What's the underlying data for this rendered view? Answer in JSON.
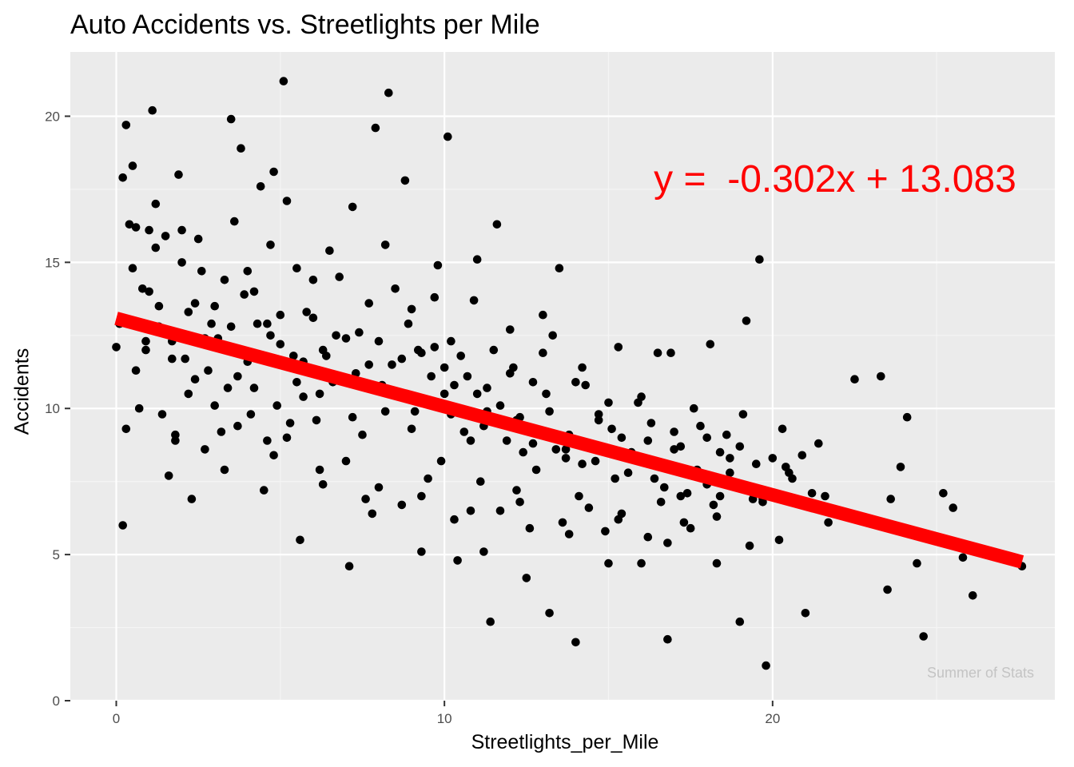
{
  "chart_data": {
    "type": "scatter",
    "title": "Auto Accidents vs. Streetlights per Mile",
    "xlabel": "Streetlights_per_Mile",
    "ylabel": "Accidents",
    "xlim": [
      -1.4,
      28.6
    ],
    "ylim": [
      0,
      22.2
    ],
    "x_ticks": [
      0,
      10,
      20
    ],
    "y_ticks": [
      0,
      5,
      10,
      15,
      20
    ],
    "grid": true,
    "annotation": "y =  -0.302x + 13.083",
    "watermark": "Summer of Stats",
    "regression": {
      "slope": -0.302,
      "intercept": 13.083,
      "x_range": [
        0,
        27.6
      ],
      "color": "#ff0000"
    },
    "point_color": "#000000",
    "series": [
      {
        "values": [
          [
            0.1,
            12.9
          ],
          [
            0.2,
            6.0
          ],
          [
            0.3,
            19.7
          ],
          [
            0.5,
            18.3
          ],
          [
            0.6,
            16.2
          ],
          [
            0.8,
            14.1
          ],
          [
            0.9,
            12.0
          ],
          [
            1.1,
            20.2
          ],
          [
            1.2,
            17.0
          ],
          [
            1.3,
            13.5
          ],
          [
            1.5,
            15.9
          ],
          [
            1.7,
            12.3
          ],
          [
            1.8,
            9.1
          ],
          [
            2.0,
            16.1
          ],
          [
            2.2,
            13.3
          ],
          [
            2.4,
            11.0
          ],
          [
            2.5,
            15.8
          ],
          [
            2.7,
            8.6
          ],
          [
            2.9,
            12.9
          ],
          [
            3.0,
            10.1
          ],
          [
            3.3,
            14.4
          ],
          [
            3.5,
            19.9
          ],
          [
            3.7,
            9.4
          ],
          [
            3.8,
            18.9
          ],
          [
            4.0,
            11.6
          ],
          [
            4.2,
            14.0
          ],
          [
            4.4,
            17.6
          ],
          [
            4.6,
            8.9
          ],
          [
            4.8,
            18.1
          ],
          [
            5.0,
            12.2
          ],
          [
            5.1,
            21.2
          ],
          [
            5.3,
            9.5
          ],
          [
            5.5,
            14.8
          ],
          [
            5.7,
            10.4
          ],
          [
            6.0,
            13.1
          ],
          [
            6.2,
            7.9
          ],
          [
            6.5,
            15.4
          ],
          [
            6.7,
            11.0
          ],
          [
            7.0,
            8.2
          ],
          [
            7.2,
            16.9
          ],
          [
            7.4,
            12.6
          ],
          [
            7.6,
            6.9
          ],
          [
            7.9,
            19.6
          ],
          [
            8.1,
            10.8
          ],
          [
            8.3,
            20.8
          ],
          [
            8.5,
            14.1
          ],
          [
            8.8,
            17.8
          ],
          [
            9.0,
            9.3
          ],
          [
            9.2,
            12.0
          ],
          [
            9.5,
            7.6
          ],
          [
            9.7,
            13.8
          ],
          [
            10.0,
            10.5
          ],
          [
            10.1,
            19.3
          ],
          [
            10.3,
            6.2
          ],
          [
            10.5,
            11.8
          ],
          [
            10.8,
            8.9
          ],
          [
            11.0,
            15.1
          ],
          [
            11.2,
            5.1
          ],
          [
            11.4,
            2.7
          ],
          [
            11.6,
            16.3
          ],
          [
            11.8,
            9.6
          ],
          [
            12.0,
            12.7
          ],
          [
            12.2,
            7.2
          ],
          [
            12.5,
            4.2
          ],
          [
            12.7,
            10.9
          ],
          [
            13.0,
            13.2
          ],
          [
            13.2,
            3.0
          ],
          [
            13.5,
            14.8
          ],
          [
            13.7,
            8.3
          ],
          [
            14.0,
            2.0
          ],
          [
            14.2,
            11.4
          ],
          [
            14.4,
            6.6
          ],
          [
            14.7,
            9.8
          ],
          [
            15.0,
            4.7
          ],
          [
            15.3,
            12.1
          ],
          [
            15.6,
            7.8
          ],
          [
            15.9,
            10.2
          ],
          [
            16.2,
            5.6
          ],
          [
            16.5,
            11.9
          ],
          [
            16.8,
            2.1
          ],
          [
            17.0,
            8.6
          ],
          [
            17.3,
            6.1
          ],
          [
            17.6,
            10.0
          ],
          [
            18.0,
            7.4
          ],
          [
            18.3,
            4.7
          ],
          [
            18.6,
            9.1
          ],
          [
            19.0,
            2.7
          ],
          [
            19.2,
            13.0
          ],
          [
            19.4,
            6.9
          ],
          [
            19.6,
            15.1
          ],
          [
            19.8,
            1.2
          ],
          [
            20.0,
            8.3
          ],
          [
            20.3,
            9.3
          ],
          [
            20.6,
            7.6
          ],
          [
            21.0,
            3.0
          ],
          [
            21.4,
            8.8
          ],
          [
            21.7,
            6.1
          ],
          [
            22.5,
            11.0
          ],
          [
            23.3,
            11.1
          ],
          [
            23.5,
            3.8
          ],
          [
            23.9,
            8.0
          ],
          [
            24.1,
            9.7
          ],
          [
            24.4,
            4.7
          ],
          [
            24.6,
            2.2
          ],
          [
            25.2,
            7.1
          ],
          [
            25.5,
            6.6
          ],
          [
            25.8,
            4.9
          ],
          [
            26.1,
            3.6
          ],
          [
            27.6,
            4.6
          ],
          [
            0.0,
            12.1
          ],
          [
            0.4,
            16.3
          ],
          [
            0.7,
            10.0
          ],
          [
            1.0,
            14.0
          ],
          [
            1.4,
            9.8
          ],
          [
            1.6,
            7.7
          ],
          [
            1.9,
            18.0
          ],
          [
            2.1,
            11.7
          ],
          [
            2.3,
            6.9
          ],
          [
            2.6,
            14.7
          ],
          [
            2.8,
            11.3
          ],
          [
            3.1,
            12.4
          ],
          [
            3.4,
            10.7
          ],
          [
            3.6,
            16.4
          ],
          [
            3.9,
            13.9
          ],
          [
            4.1,
            9.8
          ],
          [
            4.3,
            12.9
          ],
          [
            4.5,
            7.2
          ],
          [
            4.7,
            15.6
          ],
          [
            4.9,
            10.1
          ],
          [
            5.2,
            17.1
          ],
          [
            5.4,
            11.8
          ],
          [
            5.6,
            5.5
          ],
          [
            5.8,
            13.3
          ],
          [
            6.1,
            9.6
          ],
          [
            6.3,
            12.0
          ],
          [
            6.6,
            10.9
          ],
          [
            6.8,
            14.5
          ],
          [
            7.1,
            4.6
          ],
          [
            7.3,
            11.2
          ],
          [
            7.5,
            9.1
          ],
          [
            7.7,
            13.6
          ],
          [
            8.0,
            7.3
          ],
          [
            8.2,
            15.6
          ],
          [
            8.4,
            11.5
          ],
          [
            8.7,
            6.7
          ],
          [
            8.9,
            12.9
          ],
          [
            9.1,
            9.9
          ],
          [
            9.3,
            5.1
          ],
          [
            9.6,
            11.1
          ],
          [
            9.8,
            14.9
          ],
          [
            9.9,
            8.2
          ],
          [
            10.2,
            12.3
          ],
          [
            10.4,
            4.8
          ],
          [
            10.6,
            9.2
          ],
          [
            10.9,
            13.7
          ],
          [
            11.1,
            7.5
          ],
          [
            11.3,
            10.7
          ],
          [
            11.5,
            12.0
          ],
          [
            11.7,
            6.5
          ],
          [
            11.9,
            8.9
          ],
          [
            12.1,
            11.4
          ],
          [
            12.3,
            9.7
          ],
          [
            12.6,
            5.9
          ],
          [
            12.8,
            7.9
          ],
          [
            13.1,
            10.5
          ],
          [
            13.3,
            12.5
          ],
          [
            13.6,
            6.1
          ],
          [
            13.8,
            9.1
          ],
          [
            14.1,
            7.0
          ],
          [
            14.3,
            10.8
          ],
          [
            14.6,
            8.2
          ],
          [
            14.9,
            5.8
          ],
          [
            15.1,
            9.3
          ],
          [
            15.4,
            6.4
          ],
          [
            15.7,
            8.5
          ],
          [
            16.0,
            4.7
          ],
          [
            16.3,
            9.5
          ],
          [
            16.6,
            6.8
          ],
          [
            16.9,
            11.9
          ],
          [
            17.2,
            7.0
          ],
          [
            17.5,
            5.9
          ],
          [
            17.8,
            9.4
          ],
          [
            18.1,
            12.2
          ],
          [
            18.4,
            7.0
          ],
          [
            18.7,
            8.3
          ],
          [
            19.1,
            9.8
          ],
          [
            19.3,
            5.3
          ],
          [
            19.5,
            8.1
          ],
          [
            19.7,
            6.8
          ],
          [
            20.2,
            5.5
          ],
          [
            20.5,
            7.8
          ],
          [
            20.9,
            8.4
          ],
          [
            21.2,
            7.1
          ],
          [
            21.6,
            7.0
          ],
          [
            22.0,
            6.4
          ],
          [
            23.6,
            6.9
          ],
          [
            0.2,
            17.9
          ],
          [
            0.6,
            11.3
          ],
          [
            0.9,
            12.3
          ],
          [
            1.2,
            15.5
          ],
          [
            1.7,
            11.7
          ],
          [
            2.2,
            10.5
          ],
          [
            2.7,
            12.4
          ],
          [
            3.2,
            9.2
          ],
          [
            3.7,
            11.1
          ],
          [
            4.2,
            10.7
          ],
          [
            4.7,
            12.5
          ],
          [
            5.2,
            9.0
          ],
          [
            5.7,
            11.6
          ],
          [
            6.2,
            10.5
          ],
          [
            6.7,
            12.5
          ],
          [
            7.2,
            9.7
          ],
          [
            7.7,
            11.5
          ],
          [
            8.2,
            9.9
          ],
          [
            8.7,
            11.7
          ],
          [
            9.2,
            10.3
          ],
          [
            9.7,
            12.1
          ],
          [
            10.2,
            9.8
          ],
          [
            10.7,
            11.1
          ],
          [
            11.2,
            9.4
          ],
          [
            11.7,
            10.1
          ],
          [
            12.2,
            9.6
          ],
          [
            12.7,
            8.8
          ],
          [
            13.2,
            9.9
          ],
          [
            13.7,
            8.6
          ],
          [
            14.2,
            8.1
          ],
          [
            14.7,
            9.6
          ],
          [
            15.2,
            7.6
          ],
          [
            15.7,
            8.3
          ],
          [
            16.2,
            8.9
          ],
          [
            16.7,
            7.3
          ],
          [
            17.2,
            8.7
          ],
          [
            17.7,
            7.9
          ],
          [
            18.2,
            6.7
          ],
          [
            18.7,
            7.8
          ],
          [
            19.2,
            7.3
          ],
          [
            19.7,
            6.9
          ],
          [
            0.5,
            14.8
          ],
          [
            1.3,
            12.8
          ],
          [
            2.4,
            13.6
          ],
          [
            3.5,
            12.8
          ],
          [
            4.6,
            12.9
          ],
          [
            5.5,
            10.9
          ],
          [
            6.4,
            11.8
          ],
          [
            7.3,
            10.8
          ],
          [
            8.3,
            10.6
          ],
          [
            9.3,
            11.9
          ],
          [
            10.3,
            10.8
          ],
          [
            11.3,
            9.9
          ],
          [
            12.4,
            8.5
          ],
          [
            13.4,
            8.6
          ],
          [
            14.4,
            8.8
          ],
          [
            15.4,
            9.0
          ],
          [
            16.4,
            7.6
          ],
          [
            17.4,
            7.1
          ],
          [
            18.4,
            8.5
          ],
          [
            19.4,
            7.1
          ],
          [
            20.4,
            8.0
          ],
          [
            1.0,
            16.1
          ],
          [
            2.0,
            15.0
          ],
          [
            3.0,
            13.5
          ],
          [
            4.0,
            14.7
          ],
          [
            5.0,
            13.2
          ],
          [
            6.0,
            14.4
          ],
          [
            7.0,
            12.4
          ],
          [
            8.0,
            12.3
          ],
          [
            9.0,
            13.4
          ],
          [
            10.0,
            11.4
          ],
          [
            11.0,
            10.5
          ],
          [
            12.0,
            11.2
          ],
          [
            13.0,
            11.9
          ],
          [
            14.0,
            10.9
          ],
          [
            15.0,
            10.2
          ],
          [
            16.0,
            10.4
          ],
          [
            17.0,
            9.2
          ],
          [
            18.0,
            9.0
          ],
          [
            19.0,
            8.7
          ],
          [
            0.3,
            9.3
          ],
          [
            1.8,
            8.9
          ],
          [
            3.3,
            7.9
          ],
          [
            4.8,
            8.4
          ],
          [
            6.3,
            7.4
          ],
          [
            7.8,
            6.4
          ],
          [
            9.3,
            7.0
          ],
          [
            10.8,
            6.5
          ],
          [
            12.3,
            6.8
          ],
          [
            13.8,
            5.7
          ],
          [
            15.3,
            6.2
          ],
          [
            16.8,
            5.4
          ],
          [
            18.3,
            6.3
          ]
        ]
      }
    ]
  }
}
